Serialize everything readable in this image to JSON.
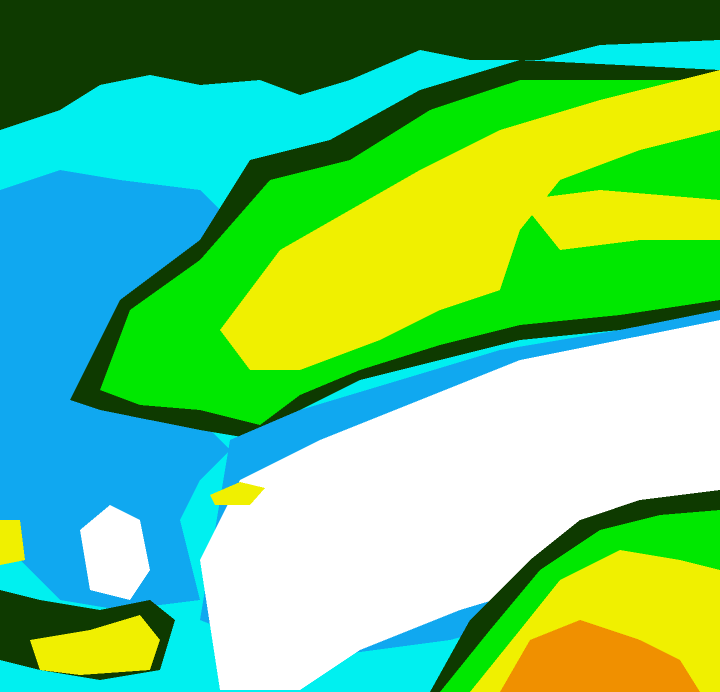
{
  "palette": {
    "dark_green": "#0e3a00",
    "cyan": "#00f0f0",
    "light_blue": "#10a8f0",
    "green": "#00e800",
    "yellow": "#f0f000",
    "white": "#ffffff",
    "orange": "#f09000"
  }
}
